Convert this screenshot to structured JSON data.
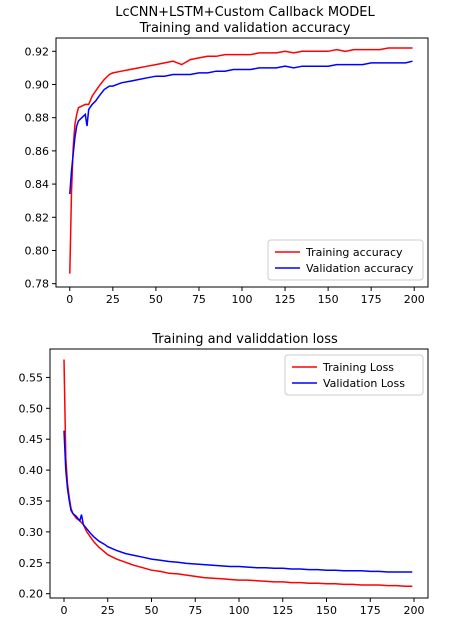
{
  "chart_data": [
    {
      "type": "line",
      "title": "LcCNN+LSTM+Custom Callback MODEL",
      "subtitle": "Training and validation accuracy",
      "xlabel": "",
      "ylabel": "",
      "xlim": [
        -8,
        208
      ],
      "ylim": [
        0.778,
        0.928
      ],
      "xticks": [
        0,
        25,
        50,
        75,
        100,
        125,
        150,
        175,
        200
      ],
      "yticks": [
        0.78,
        0.8,
        0.82,
        0.84,
        0.86,
        0.88,
        0.9,
        0.92
      ],
      "ytick_labels": [
        "0.78",
        "0.80",
        "0.82",
        "0.84",
        "0.86",
        "0.88",
        "0.90",
        "0.92"
      ],
      "legend_position": "lower-right",
      "grid": false,
      "series": [
        {
          "name": "Training accuracy",
          "color": "#ff0000",
          "points": [
            [
              0,
              0.786
            ],
            [
              1,
              0.835
            ],
            [
              2,
              0.862
            ],
            [
              3,
              0.876
            ],
            [
              4,
              0.882
            ],
            [
              5,
              0.886
            ],
            [
              7,
              0.887
            ],
            [
              9,
              0.888
            ],
            [
              11,
              0.888
            ],
            [
              13,
              0.893
            ],
            [
              15,
              0.896
            ],
            [
              17,
              0.899
            ],
            [
              20,
              0.903
            ],
            [
              23,
              0.906
            ],
            [
              25,
              0.907
            ],
            [
              30,
              0.908
            ],
            [
              35,
              0.909
            ],
            [
              40,
              0.91
            ],
            [
              45,
              0.911
            ],
            [
              50,
              0.912
            ],
            [
              55,
              0.913
            ],
            [
              60,
              0.914
            ],
            [
              65,
              0.912
            ],
            [
              70,
              0.915
            ],
            [
              75,
              0.916
            ],
            [
              80,
              0.917
            ],
            [
              85,
              0.917
            ],
            [
              90,
              0.918
            ],
            [
              95,
              0.918
            ],
            [
              100,
              0.918
            ],
            [
              105,
              0.918
            ],
            [
              110,
              0.919
            ],
            [
              115,
              0.919
            ],
            [
              120,
              0.919
            ],
            [
              125,
              0.92
            ],
            [
              130,
              0.919
            ],
            [
              135,
              0.92
            ],
            [
              140,
              0.92
            ],
            [
              145,
              0.92
            ],
            [
              150,
              0.92
            ],
            [
              155,
              0.921
            ],
            [
              160,
              0.92
            ],
            [
              165,
              0.921
            ],
            [
              170,
              0.921
            ],
            [
              175,
              0.921
            ],
            [
              180,
              0.921
            ],
            [
              185,
              0.922
            ],
            [
              190,
              0.922
            ],
            [
              195,
              0.922
            ],
            [
              199,
              0.922
            ]
          ]
        },
        {
          "name": "Validation accuracy",
          "color": "#0000ff",
          "points": [
            [
              0,
              0.834
            ],
            [
              1,
              0.848
            ],
            [
              2,
              0.858
            ],
            [
              3,
              0.868
            ],
            [
              4,
              0.875
            ],
            [
              5,
              0.878
            ],
            [
              7,
              0.88
            ],
            [
              9,
              0.882
            ],
            [
              10,
              0.875
            ],
            [
              11,
              0.885
            ],
            [
              13,
              0.888
            ],
            [
              15,
              0.89
            ],
            [
              17,
              0.893
            ],
            [
              20,
              0.897
            ],
            [
              23,
              0.899
            ],
            [
              25,
              0.899
            ],
            [
              30,
              0.901
            ],
            [
              35,
              0.902
            ],
            [
              40,
              0.903
            ],
            [
              45,
              0.904
            ],
            [
              50,
              0.905
            ],
            [
              55,
              0.905
            ],
            [
              60,
              0.906
            ],
            [
              65,
              0.906
            ],
            [
              70,
              0.906
            ],
            [
              75,
              0.907
            ],
            [
              80,
              0.907
            ],
            [
              85,
              0.908
            ],
            [
              90,
              0.908
            ],
            [
              95,
              0.909
            ],
            [
              100,
              0.909
            ],
            [
              105,
              0.909
            ],
            [
              110,
              0.91
            ],
            [
              115,
              0.91
            ],
            [
              120,
              0.91
            ],
            [
              125,
              0.911
            ],
            [
              130,
              0.91
            ],
            [
              135,
              0.911
            ],
            [
              140,
              0.911
            ],
            [
              145,
              0.911
            ],
            [
              150,
              0.911
            ],
            [
              155,
              0.912
            ],
            [
              160,
              0.912
            ],
            [
              165,
              0.912
            ],
            [
              170,
              0.912
            ],
            [
              175,
              0.913
            ],
            [
              180,
              0.913
            ],
            [
              185,
              0.913
            ],
            [
              190,
              0.913
            ],
            [
              195,
              0.913
            ],
            [
              199,
              0.914
            ]
          ]
        }
      ]
    },
    {
      "type": "line",
      "title": "Training and validdation loss",
      "xlabel": "",
      "ylabel": "",
      "xlim": [
        -8,
        208
      ],
      "ylim": [
        0.193,
        0.596
      ],
      "xticks": [
        0,
        25,
        50,
        75,
        100,
        125,
        150,
        175,
        200
      ],
      "yticks": [
        0.2,
        0.25,
        0.3,
        0.35,
        0.4,
        0.45,
        0.5,
        0.55
      ],
      "ytick_labels": [
        "0.20",
        "0.25",
        "0.30",
        "0.35",
        "0.40",
        "0.45",
        "0.50",
        "0.55"
      ],
      "legend_position": "upper-right",
      "grid": false,
      "series": [
        {
          "name": "Training Loss",
          "color": "#ff0000",
          "points": [
            [
              0,
              0.579
            ],
            [
              1,
              0.42
            ],
            [
              2,
              0.378
            ],
            [
              3,
              0.355
            ],
            [
              4,
              0.338
            ],
            [
              5,
              0.33
            ],
            [
              7,
              0.322
            ],
            [
              9,
              0.318
            ],
            [
              11,
              0.312
            ],
            [
              13,
              0.3
            ],
            [
              15,
              0.292
            ],
            [
              17,
              0.284
            ],
            [
              20,
              0.275
            ],
            [
              23,
              0.268
            ],
            [
              25,
              0.263
            ],
            [
              30,
              0.256
            ],
            [
              35,
              0.251
            ],
            [
              40,
              0.246
            ],
            [
              45,
              0.242
            ],
            [
              50,
              0.238
            ],
            [
              55,
              0.236
            ],
            [
              60,
              0.233
            ],
            [
              65,
              0.232
            ],
            [
              70,
              0.23
            ],
            [
              75,
              0.228
            ],
            [
              80,
              0.226
            ],
            [
              85,
              0.225
            ],
            [
              90,
              0.224
            ],
            [
              95,
              0.223
            ],
            [
              100,
              0.222
            ],
            [
              105,
              0.222
            ],
            [
              110,
              0.221
            ],
            [
              115,
              0.22
            ],
            [
              120,
              0.219
            ],
            [
              125,
              0.219
            ],
            [
              130,
              0.218
            ],
            [
              135,
              0.218
            ],
            [
              140,
              0.217
            ],
            [
              145,
              0.217
            ],
            [
              150,
              0.216
            ],
            [
              155,
              0.216
            ],
            [
              160,
              0.215
            ],
            [
              165,
              0.215
            ],
            [
              170,
              0.214
            ],
            [
              175,
              0.214
            ],
            [
              180,
              0.214
            ],
            [
              185,
              0.213
            ],
            [
              190,
              0.213
            ],
            [
              195,
              0.212
            ],
            [
              199,
              0.212
            ]
          ]
        },
        {
          "name": "Validation Loss",
          "color": "#0000ff",
          "points": [
            [
              0,
              0.464
            ],
            [
              1,
              0.4
            ],
            [
              2,
              0.37
            ],
            [
              3,
              0.35
            ],
            [
              4,
              0.335
            ],
            [
              5,
              0.33
            ],
            [
              7,
              0.325
            ],
            [
              9,
              0.318
            ],
            [
              10,
              0.328
            ],
            [
              11,
              0.312
            ],
            [
              13,
              0.305
            ],
            [
              15,
              0.298
            ],
            [
              17,
              0.292
            ],
            [
              20,
              0.285
            ],
            [
              23,
              0.28
            ],
            [
              25,
              0.276
            ],
            [
              30,
              0.27
            ],
            [
              35,
              0.265
            ],
            [
              40,
              0.262
            ],
            [
              45,
              0.259
            ],
            [
              50,
              0.256
            ],
            [
              55,
              0.254
            ],
            [
              60,
              0.252
            ],
            [
              65,
              0.251
            ],
            [
              70,
              0.249
            ],
            [
              75,
              0.248
            ],
            [
              80,
              0.247
            ],
            [
              85,
              0.246
            ],
            [
              90,
              0.245
            ],
            [
              95,
              0.244
            ],
            [
              100,
              0.244
            ],
            [
              105,
              0.243
            ],
            [
              110,
              0.242
            ],
            [
              115,
              0.242
            ],
            [
              120,
              0.241
            ],
            [
              125,
              0.241
            ],
            [
              130,
              0.24
            ],
            [
              135,
              0.24
            ],
            [
              140,
              0.239
            ],
            [
              145,
              0.239
            ],
            [
              150,
              0.238
            ],
            [
              155,
              0.238
            ],
            [
              160,
              0.237
            ],
            [
              165,
              0.237
            ],
            [
              170,
              0.237
            ],
            [
              175,
              0.236
            ],
            [
              180,
              0.236
            ],
            [
              185,
              0.235
            ],
            [
              190,
              0.235
            ],
            [
              195,
              0.235
            ],
            [
              199,
              0.235
            ]
          ]
        }
      ]
    }
  ]
}
